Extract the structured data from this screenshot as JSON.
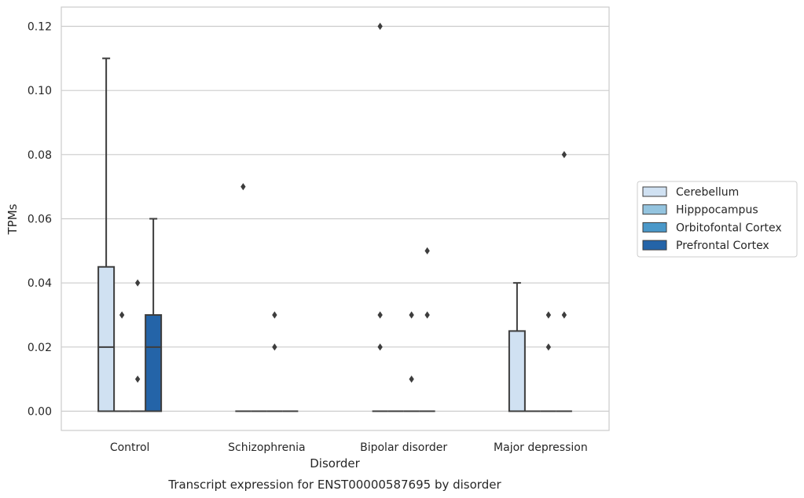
{
  "chart_data": {
    "type": "box",
    "xlabel": "Disorder",
    "ylabel": "TPMs",
    "caption": "Transcript expression for ENST00000587695 by disorder",
    "ylim": [
      -0.006,
      0.126
    ],
    "yticks": [
      "0.00",
      "0.02",
      "0.04",
      "0.06",
      "0.08",
      "0.10",
      "0.12"
    ],
    "grid": true,
    "legend_position": "right",
    "categories": [
      "Control",
      "Schizophrenia",
      "Bipolar disorder",
      "Major depression"
    ],
    "series": [
      {
        "name": "Cerebellum",
        "color": "#d0e1f2",
        "boxes": [
          {
            "q1": 0,
            "median": 0.02,
            "q3": 0.045,
            "whisker_low": 0,
            "whisker_high": 0.11,
            "outliers": []
          },
          {
            "q1": 0,
            "median": 0,
            "q3": 0,
            "whisker_low": 0,
            "whisker_high": 0,
            "outliers": [
              0.07
            ]
          },
          {
            "q1": 0,
            "median": 0,
            "q3": 0,
            "whisker_low": 0,
            "whisker_high": 0,
            "outliers": [
              0.12,
              0.03,
              0.02
            ]
          },
          {
            "q1": 0,
            "median": 0,
            "q3": 0.025,
            "whisker_low": 0,
            "whisker_high": 0.04,
            "outliers": []
          }
        ]
      },
      {
        "name": "Hipppocampus",
        "color": "#94c4df",
        "boxes": [
          {
            "q1": 0,
            "median": 0,
            "q3": 0,
            "whisker_low": 0,
            "whisker_high": 0,
            "outliers": [
              0.03
            ]
          },
          {
            "q1": 0,
            "median": 0,
            "q3": 0,
            "whisker_low": 0,
            "whisker_high": 0,
            "outliers": []
          },
          {
            "q1": 0,
            "median": 0,
            "q3": 0,
            "whisker_low": 0,
            "whisker_high": 0,
            "outliers": []
          },
          {
            "q1": 0,
            "median": 0,
            "q3": 0,
            "whisker_low": 0,
            "whisker_high": 0,
            "outliers": []
          }
        ]
      },
      {
        "name": "Orbitofontal Cortex",
        "color": "#4a98c9",
        "boxes": [
          {
            "q1": 0,
            "median": 0,
            "q3": 0,
            "whisker_low": 0,
            "whisker_high": 0,
            "outliers": [
              0.04,
              0.01
            ]
          },
          {
            "q1": 0,
            "median": 0,
            "q3": 0,
            "whisker_low": 0,
            "whisker_high": 0,
            "outliers": [
              0.03,
              0.02
            ]
          },
          {
            "q1": 0,
            "median": 0,
            "q3": 0,
            "whisker_low": 0,
            "whisker_high": 0,
            "outliers": [
              0.03,
              0.01
            ]
          },
          {
            "q1": 0,
            "median": 0,
            "q3": 0,
            "whisker_low": 0,
            "whisker_high": 0,
            "outliers": [
              0.03,
              0.02
            ]
          }
        ]
      },
      {
        "name": "Prefrontal Cortex",
        "color": "#2464a8",
        "boxes": [
          {
            "q1": 0,
            "median": 0.02,
            "q3": 0.03,
            "whisker_low": 0,
            "whisker_high": 0.06,
            "outliers": []
          },
          {
            "q1": 0,
            "median": 0,
            "q3": 0,
            "whisker_low": 0,
            "whisker_high": 0,
            "outliers": []
          },
          {
            "q1": 0,
            "median": 0,
            "q3": 0,
            "whisker_low": 0,
            "whisker_high": 0,
            "outliers": [
              0.05,
              0.03
            ]
          },
          {
            "q1": 0,
            "median": 0,
            "q3": 0,
            "whisker_low": 0,
            "whisker_high": 0,
            "outliers": [
              0.08,
              0.03
            ]
          }
        ]
      }
    ]
  },
  "colors": {
    "grid": "#cccccc",
    "frame": "#cccccc",
    "box_edge": "#3d3d3d",
    "text": "#262626"
  }
}
